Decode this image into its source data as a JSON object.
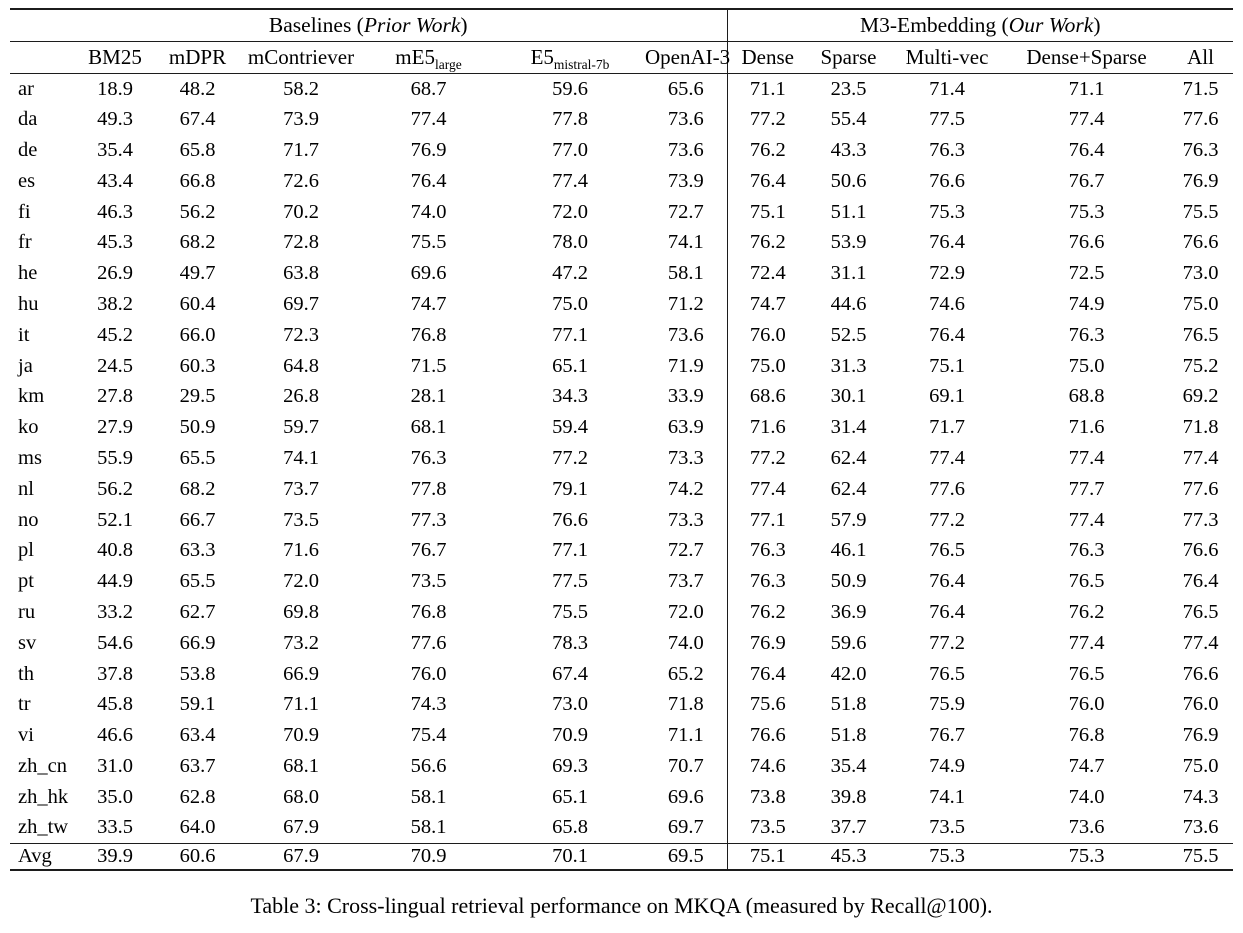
{
  "caption": {
    "text": "Table 3: Cross-lingual retrieval performance on MKQA (measured by Recall@100)."
  },
  "table": {
    "bold_marker": "*",
    "groups": [
      {
        "title_prefix": "Baselines (",
        "title_italic": "Prior Work",
        "title_suffix": ")"
      },
      {
        "title_prefix": "M3-Embedding (",
        "title_italic": "Our Work",
        "title_suffix": ")"
      }
    ],
    "columns": [
      {
        "key": "lang",
        "label": ""
      },
      {
        "key": "bm25",
        "label": "BM25"
      },
      {
        "key": "mdpr",
        "label": "mDPR"
      },
      {
        "key": "mcontriever",
        "label": "mContriever"
      },
      {
        "key": "me5",
        "label": "mE5",
        "sub": "large"
      },
      {
        "key": "e5",
        "label": "E5",
        "sub": "mistral-7b"
      },
      {
        "key": "openai3",
        "label": "OpenAI-3"
      },
      {
        "key": "dense",
        "label": "Dense"
      },
      {
        "key": "sparse",
        "label": "Sparse"
      },
      {
        "key": "multivec",
        "label": "Multi-vec"
      },
      {
        "key": "densesparse",
        "label": "Dense+Sparse"
      },
      {
        "key": "all",
        "label": "All"
      }
    ],
    "rows": [
      {
        "lang": "ar",
        "values": [
          "18.9",
          "48.2",
          "58.2",
          "68.7",
          "59.6",
          "65.6",
          "71.1",
          "23.5",
          "71.4",
          "71.1",
          "*71.5"
        ]
      },
      {
        "lang": "da",
        "values": [
          "49.3",
          "67.4",
          "73.9",
          "77.4",
          "*77.8",
          "73.6",
          "77.2",
          "55.4",
          "77.5",
          "77.4",
          "77.6"
        ]
      },
      {
        "lang": "de",
        "values": [
          "35.4",
          "65.8",
          "71.7",
          "76.9",
          "*77.0",
          "73.6",
          "76.2",
          "43.3",
          "76.3",
          "76.4",
          "76.3"
        ]
      },
      {
        "lang": "es",
        "values": [
          "43.4",
          "66.8",
          "72.6",
          "76.4",
          "*77.4",
          "73.9",
          "76.4",
          "50.6",
          "76.6",
          "76.7",
          "76.9"
        ]
      },
      {
        "lang": "fi",
        "values": [
          "46.3",
          "56.2",
          "70.2",
          "74.0",
          "72.0",
          "72.7",
          "75.1",
          "51.1",
          "75.3",
          "75.3",
          "*75.5"
        ]
      },
      {
        "lang": "fr",
        "values": [
          "45.3",
          "68.2",
          "72.8",
          "75.5",
          "*78.0",
          "74.1",
          "76.2",
          "53.9",
          "76.4",
          "76.6",
          "76.6"
        ]
      },
      {
        "lang": "he",
        "values": [
          "26.9",
          "49.7",
          "63.8",
          "69.6",
          "47.2",
          "58.1",
          "72.4",
          "31.1",
          "72.9",
          "72.5",
          "*73.0"
        ]
      },
      {
        "lang": "hu",
        "values": [
          "38.2",
          "60.4",
          "69.7",
          "74.7",
          "*75.0",
          "71.2",
          "74.7",
          "44.6",
          "74.6",
          "74.9",
          "*75.0"
        ]
      },
      {
        "lang": "it",
        "values": [
          "45.2",
          "66.0",
          "72.3",
          "76.8",
          "*77.1",
          "73.6",
          "76.0",
          "52.5",
          "76.4",
          "76.3",
          "76.5"
        ]
      },
      {
        "lang": "ja",
        "values": [
          "24.5",
          "60.3",
          "64.8",
          "71.5",
          "65.1",
          "71.9",
          "75.0",
          "31.3",
          "75.1",
          "75.0",
          "*75.2"
        ]
      },
      {
        "lang": "km",
        "values": [
          "27.8",
          "29.5",
          "26.8",
          "28.1",
          "34.3",
          "33.9",
          "68.6",
          "30.1",
          "69.1",
          "68.8",
          "*69.2"
        ]
      },
      {
        "lang": "ko",
        "values": [
          "27.9",
          "50.9",
          "59.7",
          "68.1",
          "59.4",
          "63.9",
          "71.6",
          "31.4",
          "71.7",
          "71.6",
          "*71.8"
        ]
      },
      {
        "lang": "ms",
        "values": [
          "55.9",
          "65.5",
          "74.1",
          "76.3",
          "77.2",
          "73.3",
          "77.2",
          "62.4",
          "*77.4",
          "*77.4",
          "*77.4"
        ]
      },
      {
        "lang": "nl",
        "values": [
          "56.2",
          "68.2",
          "73.7",
          "77.8",
          "*79.1",
          "74.2",
          "77.4",
          "62.4",
          "77.6",
          "77.7",
          "77.6"
        ]
      },
      {
        "lang": "no",
        "values": [
          "52.1",
          "66.7",
          "73.5",
          "77.3",
          "76.6",
          "73.3",
          "77.1",
          "57.9",
          "77.2",
          "*77.4",
          "77.3"
        ]
      },
      {
        "lang": "pl",
        "values": [
          "40.8",
          "63.3",
          "71.6",
          "76.7",
          "*77.1",
          "72.7",
          "76.3",
          "46.1",
          "76.5",
          "76.3",
          "76.6"
        ]
      },
      {
        "lang": "pt",
        "values": [
          "44.9",
          "65.5",
          "72.0",
          "73.5",
          "*77.5",
          "73.7",
          "76.3",
          "50.9",
          "76.4",
          "76.5",
          "76.4"
        ]
      },
      {
        "lang": "ru",
        "values": [
          "33.2",
          "62.7",
          "69.8",
          "*76.8",
          "75.5",
          "72.0",
          "76.2",
          "36.9",
          "76.4",
          "76.2",
          "76.5"
        ]
      },
      {
        "lang": "sv",
        "values": [
          "54.6",
          "66.9",
          "73.2",
          "77.6",
          "*78.3",
          "74.0",
          "76.9",
          "59.6",
          "77.2",
          "77.4",
          "77.4"
        ]
      },
      {
        "lang": "th",
        "values": [
          "37.8",
          "53.8",
          "66.9",
          "76.0",
          "67.4",
          "65.2",
          "76.4",
          "42.0",
          "76.5",
          "76.5",
          "*76.6"
        ]
      },
      {
        "lang": "tr",
        "values": [
          "45.8",
          "59.1",
          "71.1",
          "74.3",
          "73.0",
          "71.8",
          "75.6",
          "51.8",
          "75.9",
          "*76.0",
          "*76.0"
        ]
      },
      {
        "lang": "vi",
        "values": [
          "46.6",
          "63.4",
          "70.9",
          "75.4",
          "70.9",
          "71.1",
          "76.6",
          "51.8",
          "76.7",
          "76.8",
          "*76.9"
        ]
      },
      {
        "lang": "zh_cn",
        "values": [
          "31.0",
          "63.7",
          "68.1",
          "56.6",
          "69.3",
          "70.7",
          "74.6",
          "35.4",
          "74.9",
          "74.7",
          "*75.0"
        ]
      },
      {
        "lang": "zh_hk",
        "values": [
          "35.0",
          "62.8",
          "68.0",
          "58.1",
          "65.1",
          "69.6",
          "73.8",
          "39.8",
          "74.1",
          "74.0",
          "*74.3"
        ]
      },
      {
        "lang": "zh_tw",
        "values": [
          "33.5",
          "64.0",
          "67.9",
          "58.1",
          "65.8",
          "69.7",
          "73.5",
          "37.7",
          "73.5",
          "*73.6",
          "*73.6"
        ]
      }
    ],
    "footer_row": {
      "lang": "Avg",
      "values": [
        "39.9",
        "60.6",
        "67.9",
        "70.9",
        "70.1",
        "69.5",
        "75.1",
        "45.3",
        "75.3",
        "75.3",
        "*75.5"
      ]
    }
  }
}
